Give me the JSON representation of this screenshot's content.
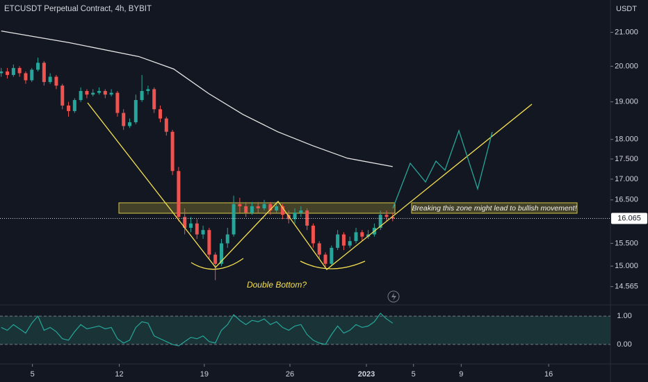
{
  "chart_data": {
    "type": "candlestick",
    "title": "ETCUSDT Perpetual Contract, 4h, BYBIT",
    "y_unit": "USDT",
    "log_scale": true,
    "up_color": "#26a69a",
    "down_color": "#ef5350",
    "open": [
      19.8,
      19.85,
      19.75,
      19.95,
      19.8,
      19.6,
      19.9,
      20.1,
      19.55,
      19.7,
      19.45,
      18.9,
      18.75,
      19.05,
      19.3,
      19.2,
      19.25,
      19.3,
      19.2,
      19.25,
      18.7,
      18.35,
      18.45,
      19.05,
      19.3,
      19.35,
      18.8,
      18.55,
      18.2,
      17.2,
      16.1,
      15.85,
      15.95,
      15.7,
      15.8,
      15.25,
      15.05,
      15.5,
      15.7,
      16.4,
      16.35,
      16.2,
      16.35,
      16.3,
      16.4,
      16.25,
      16.35,
      16.15,
      16.05,
      16.2,
      16.25,
      15.9,
      15.5,
      15.25,
      15.05,
      15.4,
      15.7,
      15.45,
      15.55,
      15.75,
      15.65,
      15.7,
      15.85,
      16.15,
      16.1
    ],
    "high": [
      19.95,
      19.95,
      20.05,
      20.0,
      19.85,
      19.95,
      20.25,
      20.15,
      19.8,
      19.75,
      19.5,
      19.0,
      19.1,
      19.4,
      19.35,
      19.35,
      19.4,
      19.35,
      19.35,
      19.3,
      18.8,
      18.55,
      19.2,
      19.75,
      19.45,
      19.4,
      18.9,
      18.6,
      18.25,
      17.3,
      16.3,
      16.1,
      16.05,
      15.9,
      15.85,
      15.3,
      15.6,
      15.85,
      16.6,
      16.55,
      16.45,
      16.45,
      16.45,
      16.5,
      16.45,
      16.45,
      16.4,
      16.25,
      16.3,
      16.35,
      16.3,
      15.95,
      15.55,
      15.3,
      15.45,
      15.8,
      15.75,
      15.65,
      15.85,
      15.8,
      15.8,
      15.95,
      16.25,
      16.25,
      16.2
    ],
    "low": [
      19.7,
      19.65,
      19.7,
      19.7,
      19.5,
      19.55,
      19.85,
      19.45,
      19.5,
      19.35,
      18.8,
      18.6,
      18.7,
      19.0,
      19.1,
      19.15,
      19.2,
      19.1,
      19.15,
      18.6,
      18.25,
      18.3,
      18.4,
      19.0,
      19.2,
      18.7,
      18.45,
      18.1,
      17.1,
      16.0,
      15.7,
      15.75,
      15.6,
      15.6,
      15.15,
      14.7,
      15.0,
      15.4,
      15.65,
      16.2,
      16.1,
      16.15,
      16.2,
      16.25,
      16.15,
      16.2,
      16.05,
      15.95,
      15.95,
      16.1,
      15.8,
      15.4,
      15.15,
      14.95,
      15.0,
      15.35,
      15.35,
      15.4,
      15.5,
      15.55,
      15.6,
      15.65,
      15.8,
      16.0,
      16.0
    ],
    "close": [
      19.85,
      19.75,
      19.95,
      19.8,
      19.6,
      19.9,
      20.1,
      19.55,
      19.7,
      19.45,
      18.9,
      18.75,
      19.05,
      19.3,
      19.2,
      19.25,
      19.3,
      19.2,
      19.25,
      18.7,
      18.35,
      18.45,
      19.05,
      19.3,
      19.35,
      18.8,
      18.55,
      18.2,
      17.2,
      16.1,
      15.85,
      15.95,
      15.7,
      15.8,
      15.25,
      15.05,
      15.5,
      15.7,
      16.4,
      16.35,
      16.2,
      16.35,
      16.3,
      16.4,
      16.25,
      16.35,
      16.15,
      16.05,
      16.2,
      16.25,
      15.9,
      15.5,
      15.25,
      15.05,
      15.4,
      15.7,
      15.45,
      15.55,
      15.75,
      15.65,
      15.7,
      15.85,
      16.15,
      16.1,
      16.065
    ],
    "moving_average": {
      "color": "#e8e8e8",
      "x": [
        0,
        11.1,
        22.5,
        28.2,
        33.9,
        39.5,
        45.2,
        50.9,
        56.6,
        64
      ],
      "values": [
        21.04,
        20.69,
        20.28,
        19.92,
        19.23,
        18.66,
        18.2,
        17.84,
        17.52,
        17.31
      ]
    },
    "last_price": 16.065,
    "xlim": [
      -0.2,
      99.6
    ],
    "xticks": [
      {
        "value": 5.1,
        "label": "5"
      },
      {
        "value": 19.3,
        "label": "12"
      },
      {
        "value": 33.2,
        "label": "19"
      },
      {
        "value": 47.2,
        "label": "26"
      },
      {
        "value": 59.7,
        "label": "2023"
      },
      {
        "value": 67.4,
        "label": "5"
      },
      {
        "value": 75.2,
        "label": "9"
      },
      {
        "value": 89.5,
        "label": "16"
      }
    ],
    "ylim": [
      14.2,
      22.0
    ],
    "yticks": [
      {
        "value": 21,
        "label": "21.000"
      },
      {
        "value": 20,
        "label": "20.000"
      },
      {
        "value": 19,
        "label": "19.000"
      },
      {
        "value": 18,
        "label": "18.000"
      },
      {
        "value": 17.5,
        "label": "17.500"
      },
      {
        "value": 17,
        "label": "17.000"
      },
      {
        "value": 16.5,
        "label": "16.500"
      },
      {
        "value": 15.5,
        "label": "15.500"
      },
      {
        "value": 15,
        "label": "15.000"
      },
      14.565
    ],
    "annotations": [
      "Breaking this zone might lead to bullish movement!",
      "Double Bottom?"
    ],
    "oscillator": {
      "color": "#26a69a",
      "values": [
        0.6,
        0.5,
        0.7,
        0.55,
        0.4,
        0.75,
        1.0,
        0.5,
        0.6,
        0.45,
        0.2,
        0.15,
        0.45,
        0.7,
        0.55,
        0.6,
        0.65,
        0.55,
        0.6,
        0.2,
        0.05,
        0.15,
        0.6,
        0.8,
        0.75,
        0.3,
        0.2,
        0.1,
        0.0,
        -0.05,
        0.1,
        0.25,
        0.2,
        0.3,
        0.1,
        0.05,
        0.5,
        0.7,
        1.05,
        0.85,
        0.7,
        0.85,
        0.8,
        0.9,
        0.7,
        0.8,
        0.6,
        0.5,
        0.65,
        0.7,
        0.35,
        0.15,
        0.05,
        0.0,
        0.35,
        0.65,
        0.4,
        0.5,
        0.7,
        0.6,
        0.65,
        0.8,
        1.1,
        0.9,
        0.75
      ],
      "ylim": [
        -0.59,
        1.37
      ],
      "yticks": [
        {
          "value": 1,
          "label": "1.00"
        },
        {
          "value": 0,
          "label": "0.00"
        }
      ]
    }
  }
}
